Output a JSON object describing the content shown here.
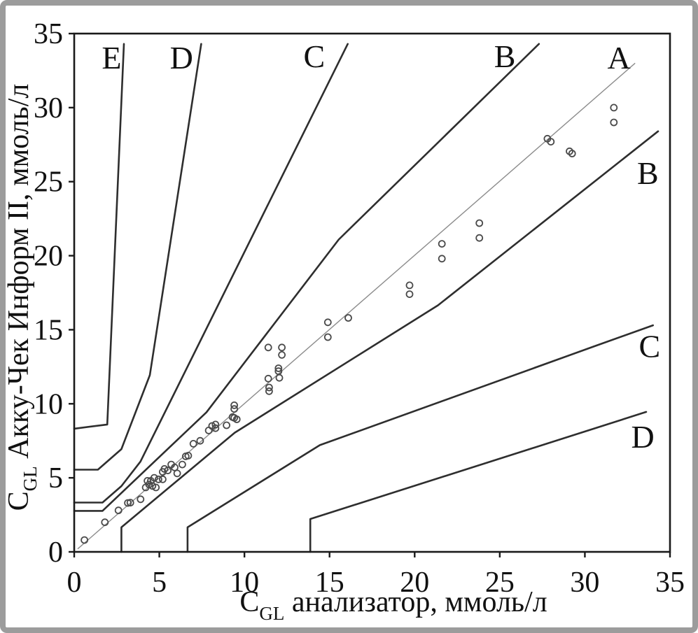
{
  "figure": {
    "outer_border_color": "#9c9c9c",
    "background": "#ffffff"
  },
  "chart_data": {
    "type": "scatter",
    "title": "",
    "xlabel": {
      "pre": "C",
      "sub": "GL",
      "post": " анализатор, ммоль/л"
    },
    "ylabel": {
      "pre": "C",
      "sub": "GL",
      "post": " Акку-Чек Информ II, ммоль/л"
    },
    "xlim": [
      0,
      35
    ],
    "ylim": [
      0,
      35
    ],
    "xticks": [
      0,
      5,
      10,
      15,
      20,
      25,
      30,
      35
    ],
    "yticks": [
      0,
      5,
      10,
      15,
      20,
      25,
      30,
      35
    ],
    "grid": false,
    "legend": "none",
    "axis_color": "#1a1a1a",
    "identity_line": {
      "name": "identity-diagonal",
      "points": [
        [
          0.2,
          0.2
        ],
        [
          32.95,
          33.0
        ]
      ],
      "color": "#8c8c8c",
      "width": 1.4
    },
    "boundary_style": {
      "color": "#2e2e2e",
      "width": 2.6
    },
    "zone_boundaries": [
      {
        "name": "E-D-boundary",
        "points": [
          [
            0,
            8.32
          ],
          [
            1.94,
            8.6
          ],
          [
            2.92,
            34.3
          ]
        ]
      },
      {
        "name": "D-C-boundary",
        "points": [
          [
            0,
            5.55
          ],
          [
            1.39,
            5.55
          ],
          [
            2.77,
            6.94
          ],
          [
            4.44,
            11.93
          ],
          [
            7.46,
            34.3
          ]
        ]
      },
      {
        "name": "C-B-boundary",
        "points": [
          [
            0,
            3.33
          ],
          [
            1.66,
            3.33
          ],
          [
            2.77,
            4.44
          ],
          [
            3.89,
            6.1
          ],
          [
            16.07,
            34.3
          ]
        ]
      },
      {
        "name": "B-A-boundary",
        "points": [
          [
            0,
            2.77
          ],
          [
            1.66,
            2.77
          ],
          [
            7.77,
            9.43
          ],
          [
            15.54,
            21.09
          ],
          [
            27.3,
            34.3
          ]
        ]
      },
      {
        "name": "A-B-lower-boundary",
        "points": [
          [
            2.77,
            0
          ],
          [
            2.77,
            1.66
          ],
          [
            9.43,
            8.05
          ],
          [
            21.37,
            16.65
          ],
          [
            34.3,
            28.4
          ]
        ]
      },
      {
        "name": "B-C-lower-boundary",
        "points": [
          [
            6.66,
            0
          ],
          [
            6.66,
            1.66
          ],
          [
            14.43,
            7.21
          ],
          [
            30.52,
            13.87
          ],
          [
            34.0,
            15.3
          ]
        ]
      },
      {
        "name": "C-D-lower-boundary",
        "points": [
          [
            13.87,
            0
          ],
          [
            13.87,
            2.22
          ],
          [
            30.52,
            8.32
          ],
          [
            33.6,
            9.45
          ]
        ]
      }
    ],
    "zone_labels": [
      {
        "text": "E",
        "x": 2.2,
        "y": 33.4
      },
      {
        "text": "D",
        "x": 6.3,
        "y": 33.4
      },
      {
        "text": "C",
        "x": 14.1,
        "y": 33.5
      },
      {
        "text": "B",
        "x": 25.3,
        "y": 33.5
      },
      {
        "text": "A",
        "x": 32.0,
        "y": 33.4
      },
      {
        "text": "B",
        "x": 33.7,
        "y": 25.6
      },
      {
        "text": "C",
        "x": 33.8,
        "y": 13.9
      },
      {
        "text": "D",
        "x": 33.4,
        "y": 7.8
      }
    ],
    "point_style": {
      "radius": 4.5,
      "color": "#4a4a4a",
      "stroke_width": 1.8
    },
    "points": [
      [
        0.6,
        0.8
      ],
      [
        1.8,
        2.0
      ],
      [
        2.6,
        2.8
      ],
      [
        3.15,
        3.3
      ],
      [
        3.3,
        3.32
      ],
      [
        3.9,
        3.55
      ],
      [
        4.2,
        4.35
      ],
      [
        4.3,
        4.8
      ],
      [
        4.4,
        4.55
      ],
      [
        4.5,
        4.8
      ],
      [
        4.6,
        4.45
      ],
      [
        4.7,
        5.0
      ],
      [
        4.8,
        4.35
      ],
      [
        4.95,
        4.9
      ],
      [
        5.2,
        4.9
      ],
      [
        5.2,
        5.4
      ],
      [
        5.3,
        5.6
      ],
      [
        5.5,
        5.5
      ],
      [
        5.7,
        5.9
      ],
      [
        5.9,
        5.7
      ],
      [
        6.05,
        5.3
      ],
      [
        6.35,
        5.9
      ],
      [
        6.55,
        6.45
      ],
      [
        6.7,
        6.5
      ],
      [
        7.0,
        7.3
      ],
      [
        7.4,
        7.5
      ],
      [
        7.9,
        8.2
      ],
      [
        8.1,
        8.5
      ],
      [
        8.3,
        8.6
      ],
      [
        8.3,
        8.35
      ],
      [
        8.95,
        8.55
      ],
      [
        9.3,
        9.1
      ],
      [
        9.4,
        9.05
      ],
      [
        9.55,
        8.95
      ],
      [
        9.4,
        9.9
      ],
      [
        9.4,
        9.65
      ],
      [
        11.4,
        11.7
      ],
      [
        11.45,
        11.1
      ],
      [
        11.45,
        10.85
      ],
      [
        12.0,
        12.4
      ],
      [
        12.0,
        12.2
      ],
      [
        12.05,
        11.75
      ],
      [
        11.4,
        13.8
      ],
      [
        12.2,
        13.8
      ],
      [
        12.2,
        13.3
      ],
      [
        14.9,
        15.5
      ],
      [
        14.9,
        14.5
      ],
      [
        16.1,
        15.8
      ],
      [
        19.7,
        18.0
      ],
      [
        19.7,
        17.4
      ],
      [
        21.6,
        20.8
      ],
      [
        21.6,
        19.8
      ],
      [
        23.8,
        22.2
      ],
      [
        23.8,
        21.2
      ],
      [
        27.8,
        27.9
      ],
      [
        28.0,
        27.7
      ],
      [
        29.1,
        27.05
      ],
      [
        29.25,
        26.9
      ],
      [
        31.7,
        30.0
      ],
      [
        31.7,
        29.0
      ]
    ]
  }
}
